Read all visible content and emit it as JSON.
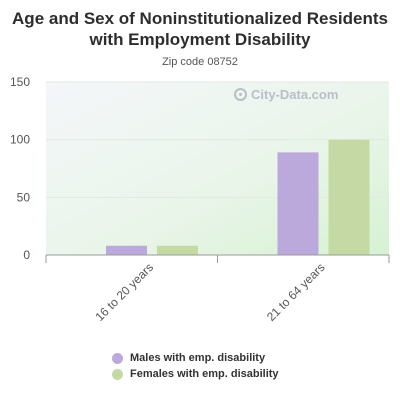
{
  "chart_data": {
    "type": "bar",
    "title": "Age and Sex of Noninstitutionalized Residents with Employment Disability",
    "subtitle": "Zip code 08752",
    "categories": [
      "16 to 20 years",
      "21 to 64 years"
    ],
    "series": [
      {
        "name": "Males with emp. disability",
        "values": [
          8,
          89
        ],
        "color": "#bca9db"
      },
      {
        "name": "Females with emp. disability",
        "values": [
          8,
          100
        ],
        "color": "#c5d9a5"
      }
    ],
    "ylim": [
      0,
      150
    ],
    "yticks": [
      0,
      50,
      100,
      150
    ],
    "grid": true,
    "legend_position": "bottom"
  },
  "watermark": {
    "text": "City-Data.com",
    "icon": "magnifier-icon"
  }
}
